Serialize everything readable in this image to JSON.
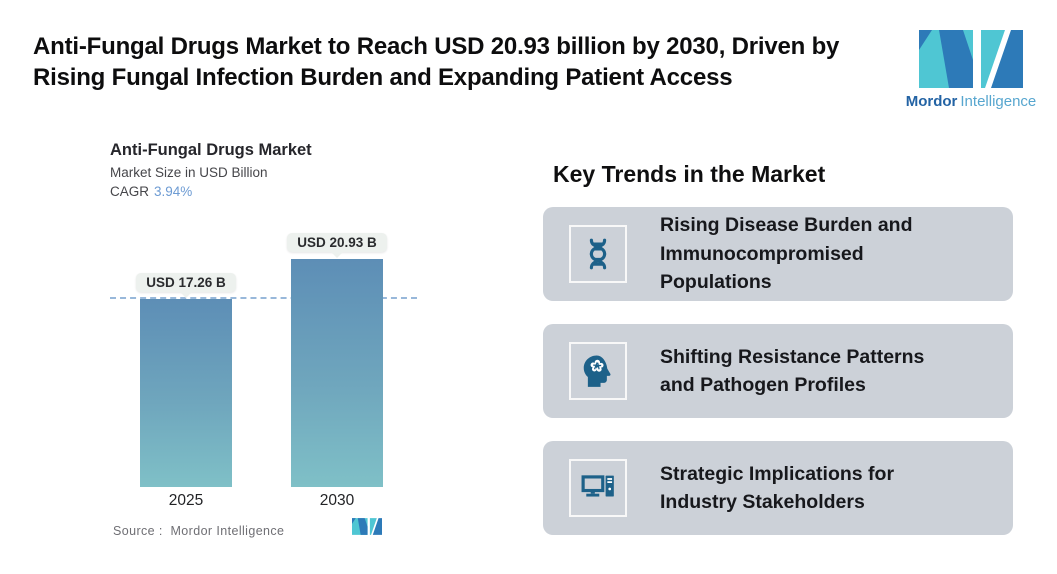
{
  "page": {
    "title_lines": [
      "Anti-Fungal Drugs Market to Reach USD 20.93 billion by 2030, Driven by",
      "Rising Fungal Infection Burden and Expanding Patient Access"
    ]
  },
  "brand": {
    "name_bold": "Mordor",
    "name_light": "Intelligence",
    "colors": {
      "dark_blue": "#2d7ab8",
      "teal": "#4fc6d3",
      "text_bold": "#2363a4",
      "text_light": "#57a6cf"
    }
  },
  "chart_data": {
    "type": "bar",
    "title": "Anti-Fungal Drugs Market",
    "subtitle": "Market Size in USD Billion",
    "cagr_label": "CAGR",
    "cagr_value": "3.94%",
    "categories": [
      "2025",
      "2030"
    ],
    "values": [
      17.26,
      20.93
    ],
    "value_labels": [
      "USD 17.26 B",
      "USD 20.93 B"
    ],
    "unit": "USD Billion",
    "ylim": [
      0,
      21
    ],
    "reference_line": 17.26,
    "grid": false,
    "legend": false,
    "source": "Source :  Mordor Intelligence",
    "colors": {
      "bar_top": "#5d8eb6",
      "bar_bottom": "#7fc0c7",
      "dashed_line": "#98b8da",
      "label_pill_bg": "#edf1ee",
      "cagr_value": "#6d9bd3"
    }
  },
  "trends": {
    "heading": "Key Trends in the Market",
    "cards": [
      {
        "icon": "dna-icon",
        "text": "Rising Disease Burden and\nImmunocompromised\nPopulations"
      },
      {
        "icon": "brain-head-icon",
        "text": "Shifting Resistance Patterns\nand Pathogen Profiles"
      },
      {
        "icon": "desktop-computer-icon",
        "text": "Strategic Implications for\nIndustry Stakeholders"
      }
    ],
    "colors": {
      "card_bg": "#ccd1d8",
      "icon": "#1d6189"
    }
  }
}
